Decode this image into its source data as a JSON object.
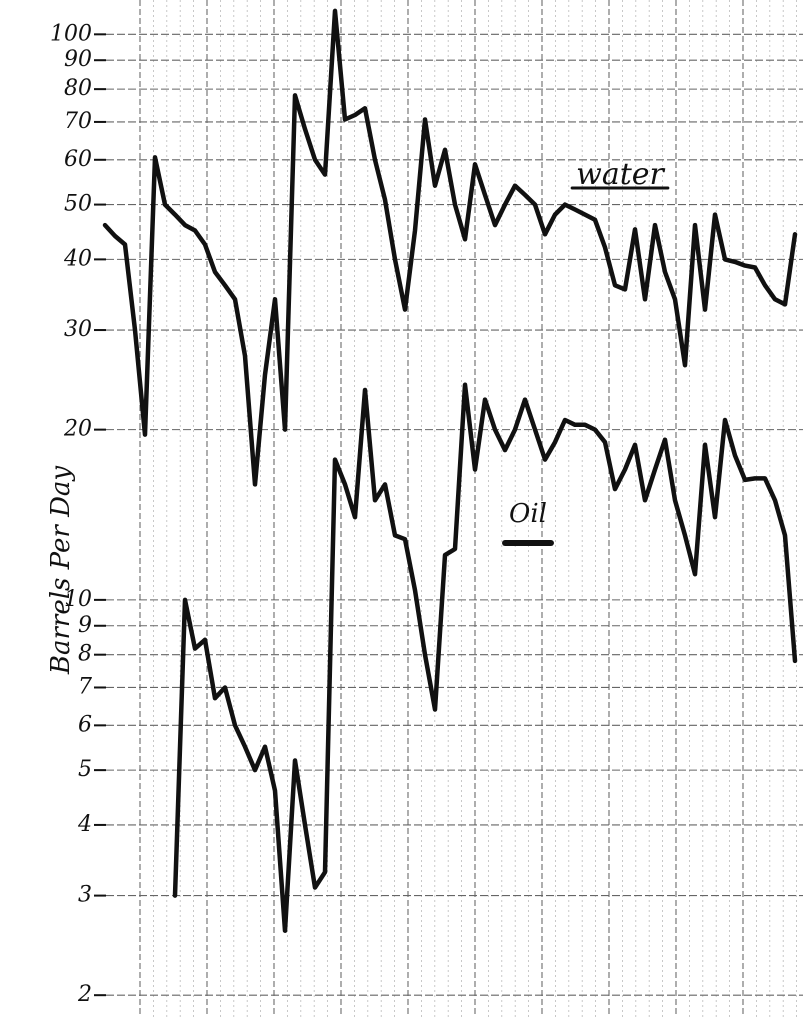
{
  "chart_data": {
    "type": "line",
    "y_label": "Barrels Per Day",
    "annotations": [
      "water",
      "Oil"
    ],
    "log_y": true,
    "grid": true,
    "ylim": [
      1.83,
      115
    ],
    "yticks": [
      2,
      3,
      4,
      5,
      6,
      7,
      8,
      9,
      10,
      20,
      30,
      40,
      50,
      60,
      70,
      80,
      90,
      100
    ],
    "categories": [
      null,
      null,
      null,
      null,
      null,
      null,
      null,
      null,
      null,
      null,
      null,
      null,
      null,
      null,
      null,
      null,
      null,
      null,
      null,
      null,
      null,
      null,
      null,
      null,
      null,
      null,
      null,
      null,
      null,
      null,
      null,
      null,
      null,
      null,
      null,
      null,
      null,
      null,
      null,
      null,
      null,
      null,
      null,
      null,
      null,
      null,
      null,
      null,
      null,
      null,
      null,
      null,
      null,
      null,
      null,
      null,
      null,
      null,
      null,
      null,
      null,
      null,
      null,
      null,
      null,
      null,
      null,
      null,
      null,
      null
    ],
    "series": [
      {
        "name": "water",
        "color": "#111111",
        "values": [
          46,
          44,
          42.5,
          30,
          19.6,
          60.6,
          50,
          48,
          46,
          45,
          42.5,
          38,
          36,
          34,
          27,
          16,
          25,
          34,
          20,
          78,
          68,
          60,
          56.5,
          110,
          70.7,
          72,
          74,
          60,
          51,
          40,
          32.6,
          45,
          70.7,
          54,
          62.5,
          50,
          43.4,
          58.9,
          52,
          46,
          50,
          54,
          52,
          50,
          44.3,
          48,
          50,
          49,
          48,
          47,
          42,
          36,
          35.4,
          45.2,
          34,
          46,
          38,
          34,
          26,
          46,
          32.6,
          48,
          40,
          39.6,
          39,
          38.7,
          36,
          34,
          33.3,
          44.3
        ]
      },
      {
        "name": "Oil",
        "color": "#111111",
        "values": [
          null,
          null,
          null,
          null,
          null,
          null,
          null,
          3,
          10,
          8.2,
          8.5,
          6.7,
          7,
          6,
          5.5,
          5,
          5.5,
          4.6,
          2.6,
          5.2,
          4,
          3.1,
          3.3,
          17.7,
          16,
          14,
          23.5,
          15,
          16,
          13,
          12.8,
          10.4,
          8,
          6.4,
          12,
          12.3,
          24,
          17,
          22.6,
          20,
          18.4,
          20,
          22.6,
          20,
          17.7,
          19,
          20.8,
          20.4,
          20.4,
          20,
          19,
          15.7,
          17,
          18.8,
          15,
          17,
          19.2,
          15,
          13,
          11.1,
          18.8,
          14,
          20.8,
          18,
          16.3,
          16.4,
          16.4,
          15,
          13,
          7.8
        ]
      }
    ]
  }
}
